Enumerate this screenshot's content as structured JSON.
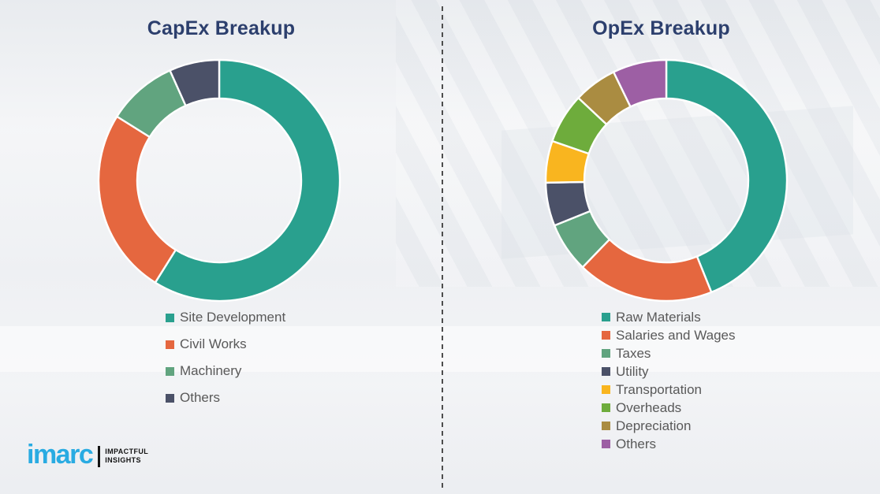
{
  "theme": {
    "background": "#F0F1F3",
    "title_color": "#2C3F6D",
    "legend_text_color": "#595959",
    "divider_color": "#4D4D4D",
    "logo_color": "#29ABE2"
  },
  "branding": {
    "logo_text": "imarc",
    "tagline_line1": "IMPACTFUL",
    "tagline_line2": "INSIGHTS"
  },
  "chart_data": [
    {
      "type": "pie",
      "subtype": "donut",
      "title": "CapEx Breakup",
      "categories": [
        "Site Development",
        "Civil Works",
        "Machinery",
        "Others"
      ],
      "values": [
        58.9,
        25.0,
        9.4,
        6.7
      ],
      "units": "percent (estimated from arc angles; no data labels shown)",
      "colors": [
        "#29A08E",
        "#E5673F",
        "#61A47F",
        "#4B5168"
      ],
      "start_angle_deg": 0,
      "direction": "clockwise",
      "legend_position": "below"
    },
    {
      "type": "pie",
      "subtype": "donut",
      "title": "OpEx Breakup",
      "categories": [
        "Raw Materials",
        "Salaries and Wages",
        "Taxes",
        "Utility",
        "Transportation",
        "Overheads",
        "Depreciation",
        "Others"
      ],
      "values": [
        43.9,
        18.3,
        6.7,
        5.8,
        5.6,
        6.7,
        5.8,
        7.2
      ],
      "units": "percent (estimated from arc angles; no data labels shown)",
      "colors": [
        "#29A08E",
        "#E5673F",
        "#61A47F",
        "#4B5168",
        "#F9B51F",
        "#6EAC3C",
        "#AA8C41",
        "#9D5FA4"
      ],
      "start_angle_deg": 0,
      "direction": "clockwise",
      "legend_position": "below"
    }
  ]
}
